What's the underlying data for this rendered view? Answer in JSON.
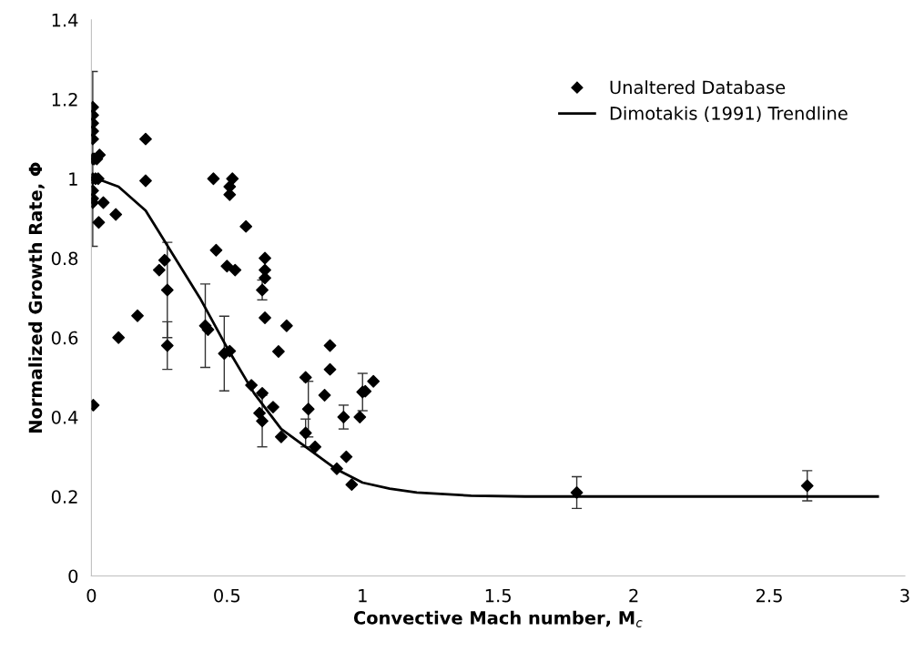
{
  "chart_data": {
    "type": "scatter",
    "xlabel": "Convective Mach number, M$_{c}$",
    "ylabel": "Normalized Growth Rate, Φ",
    "xlim": [
      0,
      3
    ],
    "xticks": [
      0,
      0.5,
      1,
      1.5,
      2,
      2.5,
      3
    ],
    "ylim": [
      0,
      1.4
    ],
    "yticks": [
      0,
      {
        "value": 0.2,
        "label": "0.2"
      },
      {
        "value": 0.4,
        "label": "0.4"
      },
      {
        "value": 0.6,
        "label": "0.6"
      },
      {
        "value": 0.8,
        "label": "0.8"
      },
      1,
      {
        "value": 1.2,
        "label": "1.2"
      },
      {
        "value": 1.4,
        "label": "1.4"
      }
    ],
    "grid": false,
    "legend": "top right",
    "series": [
      {
        "name": "Unaltered Database",
        "color": "#000000",
        "marker": "diamond",
        "x": [
          0.005,
          0.005,
          0.005,
          0.005,
          0.005,
          0.005,
          0.005,
          0.005,
          0.005,
          0.005,
          0.007,
          0.01,
          0.02,
          0.03,
          0.015,
          0.025,
          0.027,
          0.044,
          0.09,
          0.2,
          0.2,
          0.45,
          0.51,
          0.51,
          0.52,
          0.57,
          0.46,
          0.5,
          0.53,
          0.64,
          0.64,
          0.64,
          0.63,
          0.64,
          0.27,
          0.25,
          0.28,
          0.17,
          0.1,
          0.28,
          0.42,
          0.43,
          0.49,
          0.51,
          0.59,
          0.63,
          0.62,
          0.63,
          0.72,
          0.69,
          0.88,
          0.88,
          0.79,
          0.8,
          0.86,
          0.93,
          0.99,
          1.0,
          1.01,
          1.04,
          0.67,
          0.7,
          0.79,
          0.825,
          0.905,
          0.94,
          0.96,
          1.79,
          2.64
        ],
        "values": [
          1.18,
          1.16,
          1.14,
          1.12,
          1.1,
          1.05,
          1.0,
          0.97,
          0.95,
          0.94,
          0.43,
          1.05,
          1.05,
          1.06,
          1.0,
          1.0,
          0.89,
          0.94,
          0.91,
          1.1,
          0.995,
          1.0,
          0.96,
          0.98,
          1.0,
          0.88,
          0.82,
          0.78,
          0.77,
          0.8,
          0.77,
          0.75,
          0.72,
          0.65,
          0.795,
          0.77,
          0.72,
          0.655,
          0.6,
          0.58,
          0.63,
          0.62,
          0.56,
          0.566,
          0.48,
          0.46,
          0.41,
          0.39,
          0.63,
          0.565,
          0.58,
          0.52,
          0.5,
          0.42,
          0.455,
          0.4,
          0.4,
          0.463,
          0.465,
          0.49,
          0.425,
          0.35,
          0.36,
          0.325,
          0.27,
          0.3,
          0.23,
          0.21,
          0.227
        ],
        "errors": [
          null,
          null,
          null,
          null,
          null,
          0.22,
          null,
          null,
          null,
          null,
          null,
          null,
          null,
          null,
          null,
          null,
          null,
          null,
          null,
          null,
          null,
          null,
          null,
          null,
          null,
          null,
          null,
          null,
          null,
          null,
          null,
          null,
          0.025,
          null,
          null,
          null,
          0.12,
          null,
          null,
          0.06,
          0.105,
          null,
          0.094,
          null,
          null,
          null,
          null,
          0.065,
          null,
          null,
          null,
          null,
          null,
          0.07,
          null,
          0.03,
          null,
          0.047,
          null,
          null,
          null,
          null,
          0.035,
          null,
          null,
          null,
          null,
          0.04,
          0.038
        ]
      },
      {
        "name": "Dimotakis (1991) Trendline",
        "type": "line",
        "color": "#000000",
        "line_style": "solid",
        "marker": "none",
        "x": [
          0.02,
          0.1,
          0.2,
          0.3,
          0.4,
          0.5,
          0.6,
          0.7,
          0.8,
          0.9,
          1.0,
          1.1,
          1.2,
          1.4,
          1.6,
          2.0,
          2.5,
          2.9
        ],
        "values": [
          1.0,
          0.98,
          0.92,
          0.81,
          0.7,
          0.575,
          0.46,
          0.37,
          0.32,
          0.27,
          0.235,
          0.22,
          0.21,
          0.202,
          0.2,
          0.2,
          0.2,
          0.2
        ]
      }
    ]
  }
}
